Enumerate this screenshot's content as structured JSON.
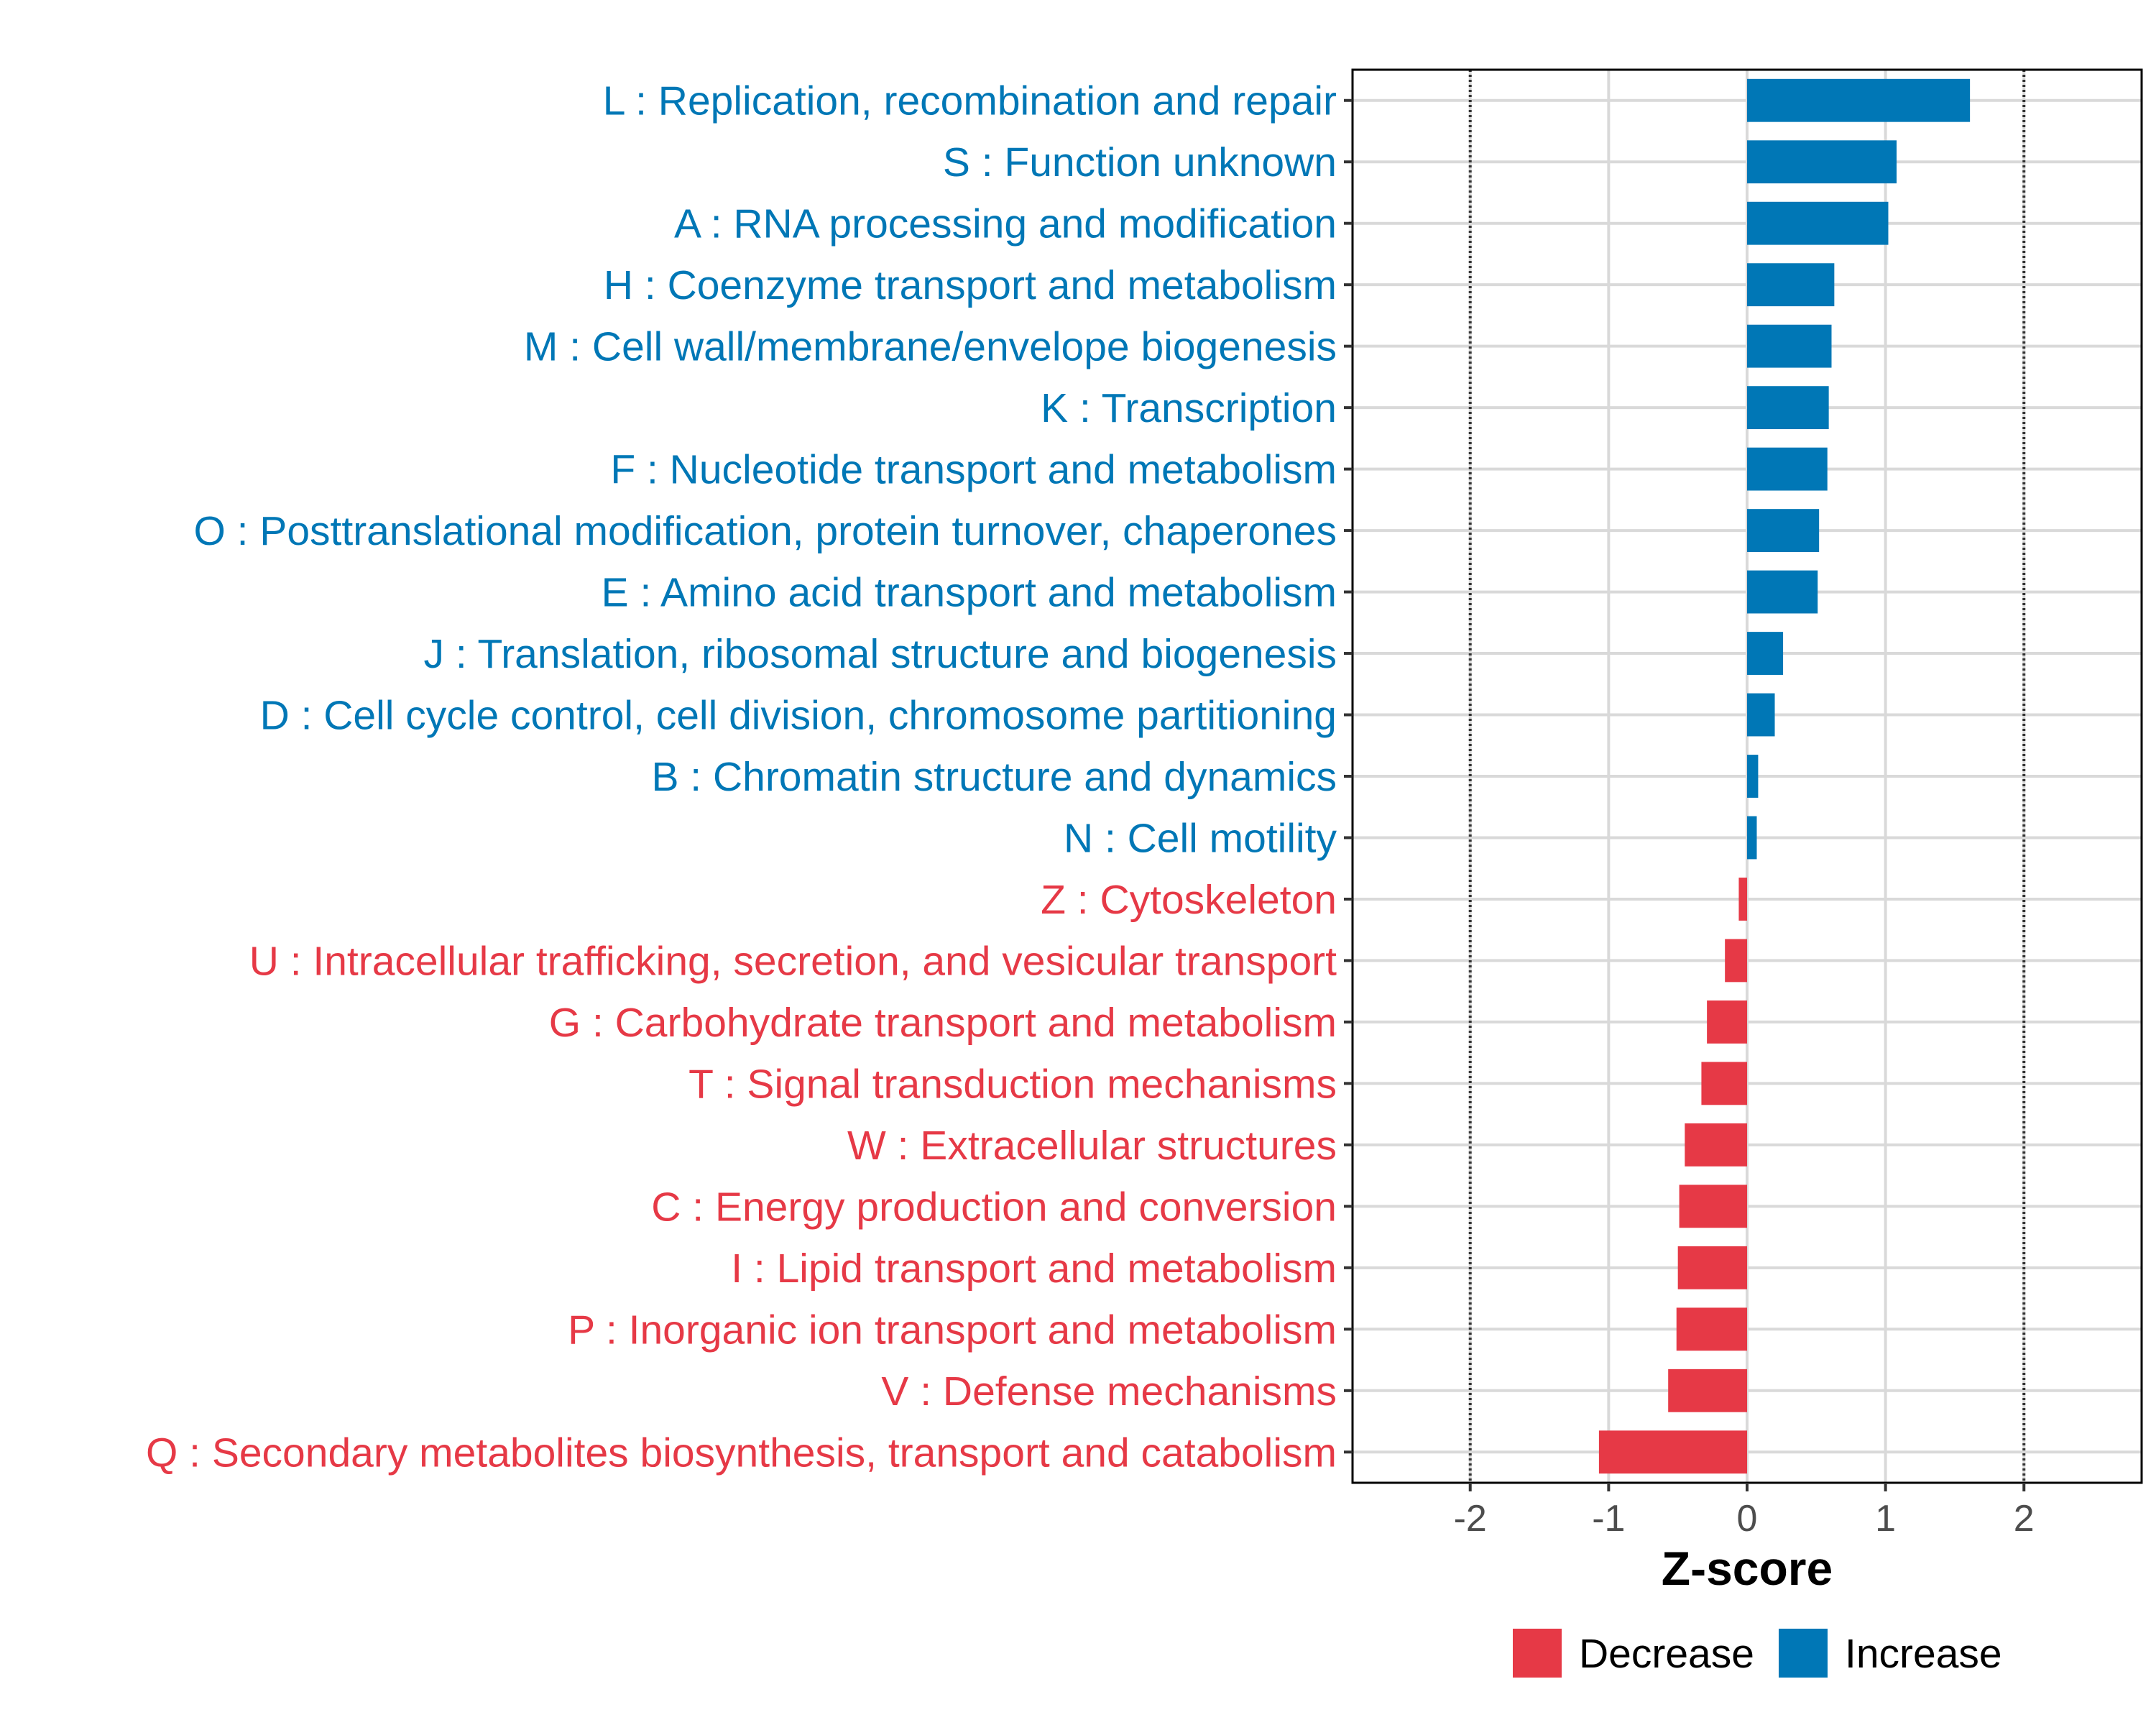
{
  "chart_data": {
    "type": "bar",
    "orientation": "horizontal",
    "title": "",
    "xlabel": "Z-score",
    "ylabel": "",
    "xlim": [
      -2.85,
      2.85
    ],
    "xticks": [
      -2,
      -1,
      0,
      1,
      2
    ],
    "tick_labels": [
      "-2",
      "-1",
      "0",
      "1",
      "2"
    ],
    "reference_lines": [
      -2,
      2
    ],
    "grid": true,
    "categories": [
      "L : Replication, recombination and repair",
      "S : Function unknown",
      "A : RNA processing and modification",
      "H : Coenzyme transport and metabolism",
      "M : Cell wall/membrane/envelope biogenesis",
      "K : Transcription",
      "F : Nucleotide transport and metabolism",
      "O : Posttranslational modification, protein turnover, chaperones",
      "E : Amino acid transport and metabolism",
      "J : Translation, ribosomal structure and biogenesis",
      "D : Cell cycle control, cell division, chromosome partitioning",
      "B : Chromatin structure and dynamics",
      "N : Cell motility",
      "Z : Cytoskeleton",
      "U : Intracellular trafficking, secretion, and vesicular transport",
      "G : Carbohydrate transport and metabolism",
      "T : Signal transduction mechanisms",
      "W : Extracellular structures",
      "C : Energy production and conversion",
      "I : Lipid transport and metabolism",
      "P : Inorganic ion transport and metabolism",
      "V : Defense mechanisms",
      "Q : Secondary metabolites biosynthesis, transport and catabolism"
    ],
    "values": [
      1.61,
      1.08,
      1.02,
      0.63,
      0.61,
      0.59,
      0.58,
      0.52,
      0.51,
      0.26,
      0.2,
      0.08,
      0.07,
      -0.06,
      -0.16,
      -0.29,
      -0.33,
      -0.45,
      -0.49,
      -0.5,
      -0.51,
      -0.57,
      -1.07
    ],
    "groups": [
      "Increase",
      "Increase",
      "Increase",
      "Increase",
      "Increase",
      "Increase",
      "Increase",
      "Increase",
      "Increase",
      "Increase",
      "Increase",
      "Increase",
      "Increase",
      "Decrease",
      "Decrease",
      "Decrease",
      "Decrease",
      "Decrease",
      "Decrease",
      "Decrease",
      "Decrease",
      "Decrease",
      "Decrease"
    ],
    "legend": [
      {
        "label": "Decrease",
        "color": "#E63946"
      },
      {
        "label": "Increase",
        "color": "#0077B6"
      }
    ],
    "legend_position": "bottom"
  }
}
